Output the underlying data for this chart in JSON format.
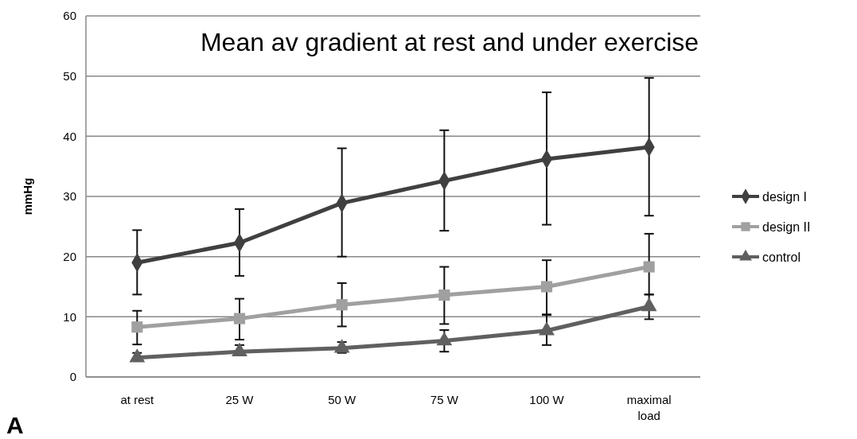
{
  "chart_data": {
    "type": "line",
    "title": "Mean av gradient at rest and under exercise",
    "ylabel": "mmHg",
    "annotations": [
      "A"
    ],
    "categories": [
      "at rest",
      "25 W",
      "50 W",
      "75 W",
      "100 W",
      "maximal load"
    ],
    "series": [
      {
        "name": "design I",
        "color": "#404040",
        "marker": "diamond",
        "values": [
          19,
          22.3,
          28.9,
          32.6,
          36.2,
          38.2
        ],
        "errors": [
          [
            13.7,
            24.4
          ],
          [
            16.8,
            27.9
          ],
          [
            20,
            38
          ],
          [
            24.3,
            41
          ],
          [
            25.3,
            47.3
          ],
          [
            26.8,
            49.7
          ]
        ]
      },
      {
        "name": "design II",
        "color": "#a0a0a0",
        "marker": "square",
        "values": [
          8.3,
          9.7,
          12,
          13.6,
          15,
          18.3
        ],
        "errors": [
          [
            5.4,
            11
          ],
          [
            6.2,
            13
          ],
          [
            8.4,
            15.6
          ],
          [
            8.8,
            18.3
          ],
          [
            10.4,
            19.4
          ],
          [
            13.7,
            23.8
          ]
        ]
      },
      {
        "name": "control",
        "color": "#606060",
        "marker": "triangle",
        "values": [
          3.2,
          4.2,
          4.8,
          6,
          7.7,
          11.7
        ],
        "errors": [
          [
            2.7,
            4
          ],
          [
            3.7,
            5.3
          ],
          [
            4,
            5.8
          ],
          [
            4.2,
            7.8
          ],
          [
            5.3,
            10.3
          ],
          [
            9.6,
            13.7
          ]
        ]
      }
    ],
    "ylim": [
      0,
      60
    ],
    "yticks": [
      0,
      10,
      20,
      30,
      40,
      50,
      60
    ],
    "grid": "y",
    "legend": "right",
    "line_style": "solid"
  }
}
